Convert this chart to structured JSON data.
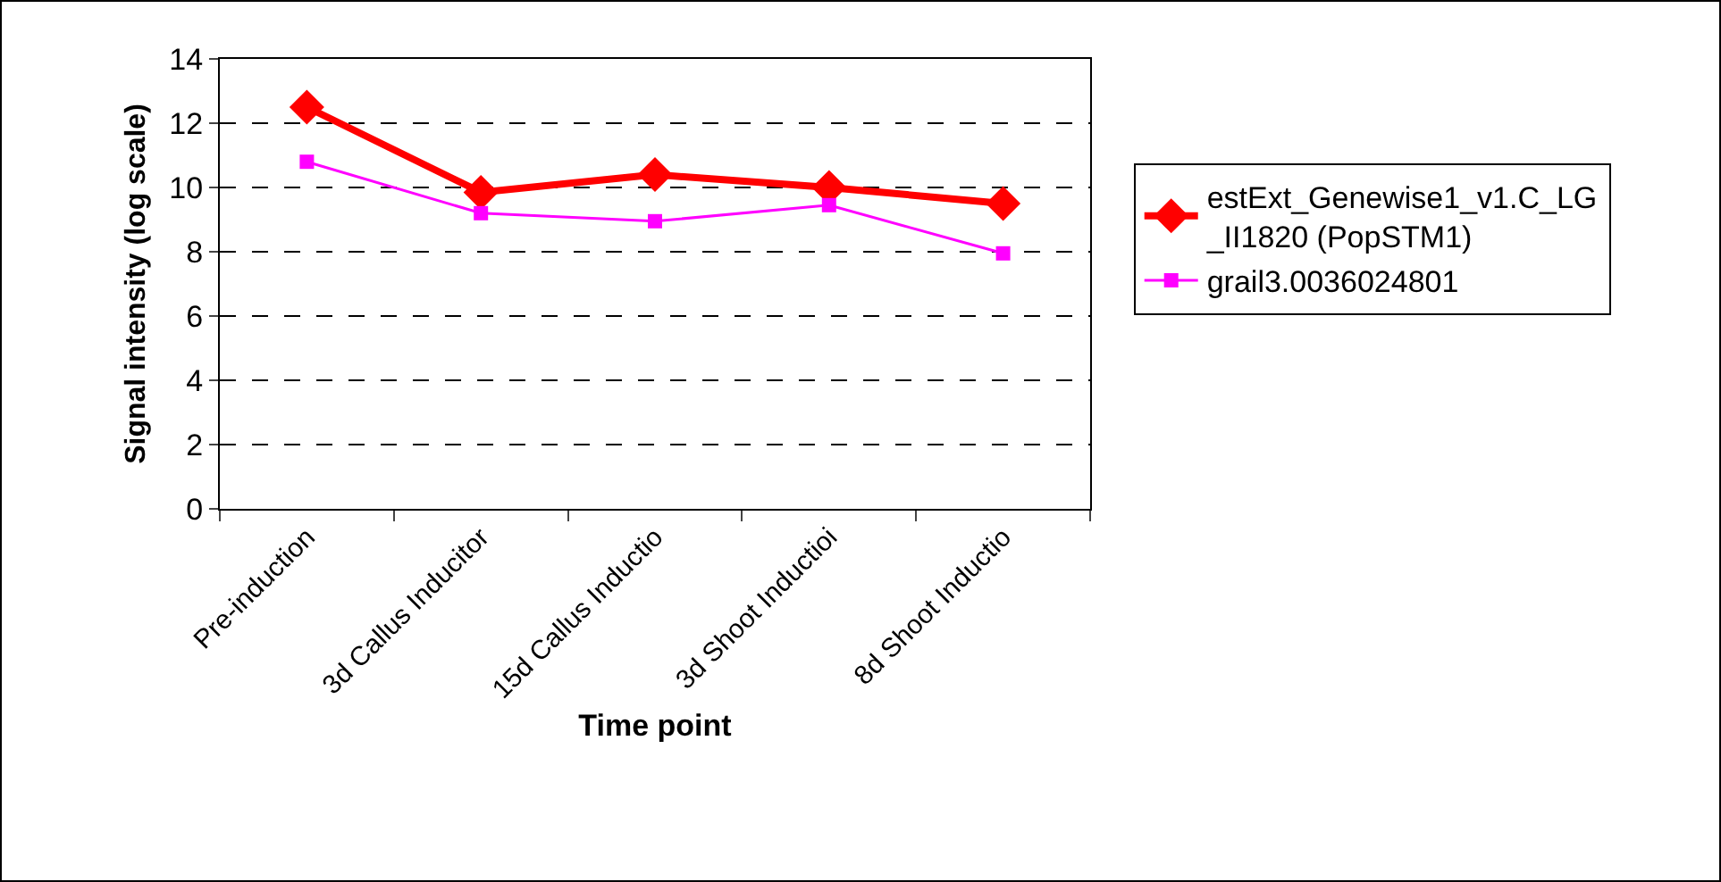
{
  "chart_data": {
    "type": "line",
    "xlabel": "Time point",
    "ylabel": "Signal intensity (log scale)",
    "categories": [
      "Pre-induction",
      "3d Callus Inducitor",
      "15d Callus Inductio",
      "3d Shoot Inductioi",
      "8d Shoot Inductio"
    ],
    "series": [
      {
        "name": "estExt_Genewise1_v1.C_LG_II1820 (PopSTM1)",
        "color": "#ff0000",
        "marker": "diamond",
        "values": [
          12.5,
          9.85,
          10.4,
          10.0,
          9.5
        ]
      },
      {
        "name": "grail3.0036024801",
        "color": "#ff00ff",
        "marker": "square",
        "values": [
          10.8,
          9.2,
          8.95,
          9.45,
          7.95
        ]
      }
    ],
    "ylim": [
      0,
      14
    ],
    "yticks": [
      0,
      2,
      4,
      6,
      8,
      10,
      12,
      14
    ],
    "grid": "y",
    "legend": "right",
    "line_style": "solid"
  }
}
